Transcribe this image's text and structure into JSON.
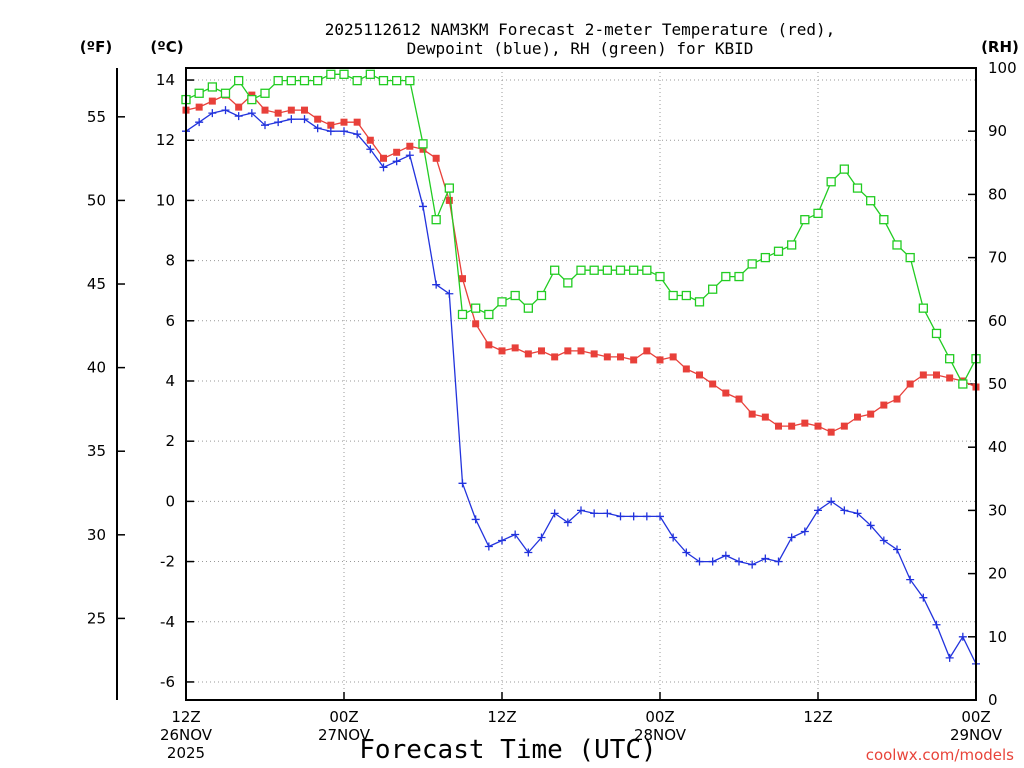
{
  "title_line1": "2025112612 NAM3KM Forecast 2-meter Temperature (red),",
  "title_line2": "Dewpoint (blue), RH (green) for KBID",
  "credit": "coolwx.com/models",
  "chart_data": {
    "type": "line",
    "title": "2025112612 NAM3KM Forecast 2-meter Temperature (red), Dewpoint (blue), RH (green) for KBID",
    "xlabel": "Forecast Time (UTC)",
    "x_hours": [
      0,
      1,
      2,
      3,
      4,
      5,
      6,
      7,
      8,
      9,
      10,
      11,
      12,
      13,
      14,
      15,
      16,
      17,
      18,
      19,
      20,
      21,
      22,
      23,
      24,
      25,
      26,
      27,
      28,
      29,
      30,
      31,
      32,
      33,
      34,
      35,
      36,
      37,
      38,
      39,
      40,
      41,
      42,
      43,
      44,
      45,
      46,
      47,
      48,
      49,
      50,
      51,
      52,
      53,
      54,
      55,
      56,
      57,
      58,
      59,
      60
    ],
    "xlim": [
      0,
      60
    ],
    "x_ticks": [
      {
        "hour": 0,
        "lines": [
          "12Z",
          "26NOV",
          "2025"
        ]
      },
      {
        "hour": 12,
        "lines": [
          "00Z",
          "27NOV"
        ]
      },
      {
        "hour": 24,
        "lines": [
          "12Z",
          ""
        ]
      },
      {
        "hour": 36,
        "lines": [
          "00Z",
          "28NOV"
        ]
      },
      {
        "hour": 48,
        "lines": [
          "12Z",
          ""
        ]
      },
      {
        "hour": 60,
        "lines": [
          "00Z",
          "29NOV"
        ]
      }
    ],
    "left_axis_c": {
      "label": "(ºC)",
      "ylim": [
        -6.6,
        14.4
      ],
      "ticks": [
        -6,
        -4,
        -2,
        0,
        2,
        4,
        6,
        8,
        10,
        12,
        14
      ]
    },
    "left_axis_f": {
      "label": "(ºF)",
      "ticks": [
        25,
        30,
        35,
        40,
        45,
        50,
        55
      ]
    },
    "right_axis_rh": {
      "label": "(RH)",
      "ylim": [
        0,
        100
      ],
      "ticks": [
        0,
        10,
        20,
        30,
        40,
        50,
        60,
        70,
        80,
        90,
        100
      ]
    },
    "series": [
      {
        "name": "Temperature (°C)",
        "axis": "celsius",
        "color": "#e8403a",
        "marker": "filled-square",
        "values": [
          13.0,
          13.1,
          13.3,
          13.5,
          13.1,
          13.5,
          13.0,
          12.9,
          13.0,
          13.0,
          12.7,
          12.5,
          12.6,
          12.6,
          12.0,
          11.4,
          11.6,
          11.8,
          11.7,
          11.4,
          10.0,
          7.4,
          5.9,
          5.2,
          5.0,
          5.1,
          4.9,
          5.0,
          4.8,
          5.0,
          5.0,
          4.9,
          4.8,
          4.8,
          4.7,
          5.0,
          4.7,
          4.8,
          4.4,
          4.2,
          3.9,
          3.6,
          3.4,
          2.9,
          2.8,
          2.5,
          2.5,
          2.6,
          2.5,
          2.3,
          2.5,
          2.8,
          2.9,
          3.2,
          3.4,
          3.9,
          4.2,
          4.2,
          4.1,
          4.0,
          3.8
        ]
      },
      {
        "name": "Dewpoint (°C)",
        "axis": "celsius",
        "color": "#2233dd",
        "marker": "plus",
        "values": [
          12.3,
          12.6,
          12.9,
          13.0,
          12.8,
          12.9,
          12.5,
          12.6,
          12.7,
          12.7,
          12.4,
          12.3,
          12.3,
          12.2,
          11.7,
          11.1,
          11.3,
          11.5,
          9.8,
          7.2,
          6.9,
          0.6,
          -0.6,
          -1.5,
          -1.3,
          -1.1,
          -1.7,
          -1.2,
          -0.4,
          -0.7,
          -0.3,
          -0.4,
          -0.4,
          -0.5,
          -0.5,
          -0.5,
          -0.5,
          -1.2,
          -1.7,
          -2.0,
          -2.0,
          -1.8,
          -2.0,
          -2.1,
          -1.9,
          -2.0,
          -1.2,
          -1.0,
          -0.3,
          0.0,
          -0.3,
          -0.4,
          -0.8,
          -1.3,
          -1.6,
          -2.6,
          -3.2,
          -4.1,
          -5.2,
          -4.5,
          -5.4
        ]
      },
      {
        "name": "RH (%)",
        "axis": "rh",
        "color": "#22cc22",
        "marker": "open-square",
        "values": [
          95,
          96,
          97,
          96,
          98,
          95,
          96,
          98,
          98,
          98,
          98,
          99,
          99,
          98,
          99,
          98,
          98,
          98,
          88,
          76,
          81,
          61,
          62,
          61,
          63,
          64,
          62,
          64,
          68,
          66,
          68,
          68,
          68,
          68,
          68,
          68,
          67,
          64,
          64,
          63,
          65,
          67,
          67,
          69,
          70,
          71,
          72,
          76,
          77,
          82,
          84,
          81,
          79,
          76,
          72,
          70,
          62,
          58,
          54,
          50,
          54
        ]
      }
    ]
  }
}
